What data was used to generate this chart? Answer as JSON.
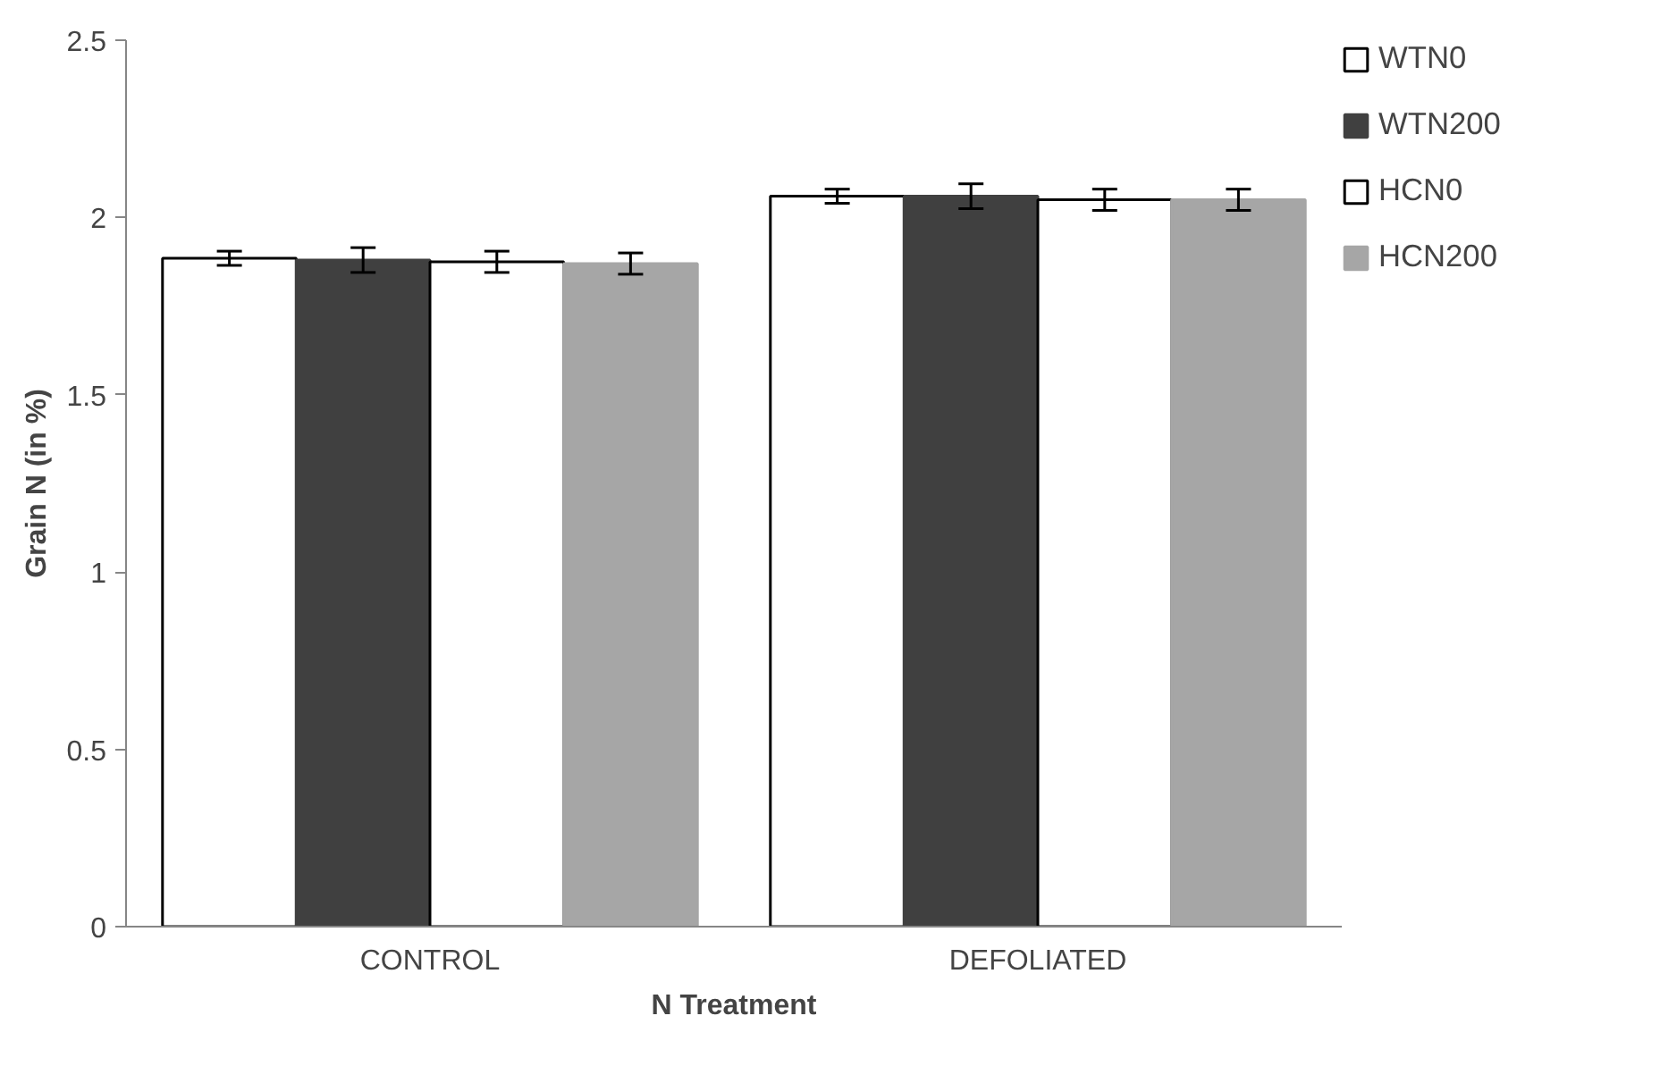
{
  "chart_data": {
    "type": "bar",
    "xlabel": "N Treatment",
    "ylabel": "Grain N (in %)",
    "categories": [
      "CONTROL",
      "DEFOLIATED"
    ],
    "series": [
      {
        "name": "WTN0",
        "color": "#ffffff",
        "values": [
          1.885,
          2.06
        ],
        "errors": [
          0.02,
          0.02
        ]
      },
      {
        "name": "WTN200",
        "color": "#404040",
        "values": [
          1.88,
          2.06
        ],
        "errors": [
          0.035,
          0.035
        ]
      },
      {
        "name": "HCN0",
        "color": "#ffffff",
        "values": [
          1.875,
          2.05
        ],
        "errors": [
          0.03,
          0.03
        ]
      },
      {
        "name": "HCN200",
        "color": "#a6a6a6",
        "values": [
          1.87,
          2.05
        ],
        "errors": [
          0.03,
          0.03
        ]
      }
    ],
    "ylim": [
      0,
      2.5
    ],
    "yticks": [
      0,
      0.5,
      1,
      1.5,
      2,
      2.5
    ],
    "grid": false,
    "legend": "right"
  }
}
